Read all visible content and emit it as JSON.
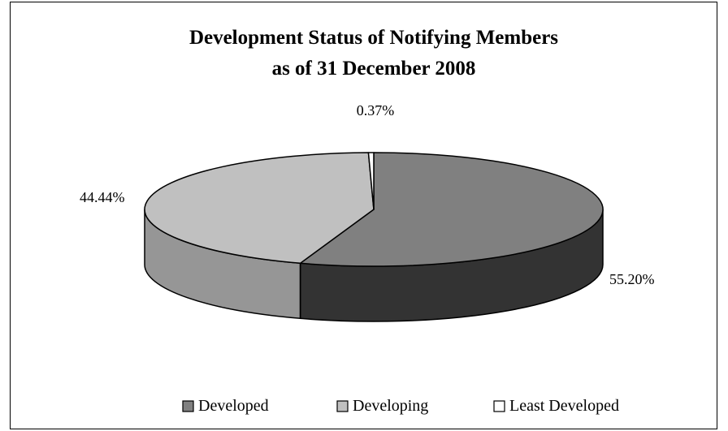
{
  "chart_data": {
    "type": "pie",
    "title": "Development Status of Notifying Members",
    "subtitle": "as of 31 December 2008",
    "categories": [
      "Developed",
      "Developing",
      "Least Developed"
    ],
    "values": [
      55.2,
      44.44,
      0.37
    ],
    "data_labels": [
      "55.20%",
      "44.44%",
      "0.37%"
    ],
    "colors": {
      "Developed": "#808080",
      "Developing": "#c0c0c0",
      "Least Developed": "#ffffff"
    },
    "side_colors": {
      "Developed": "#333333",
      "Developing": "#969696",
      "Least Developed": "#e0e0e0"
    },
    "legend_position": "bottom",
    "style": "3d-pie"
  }
}
